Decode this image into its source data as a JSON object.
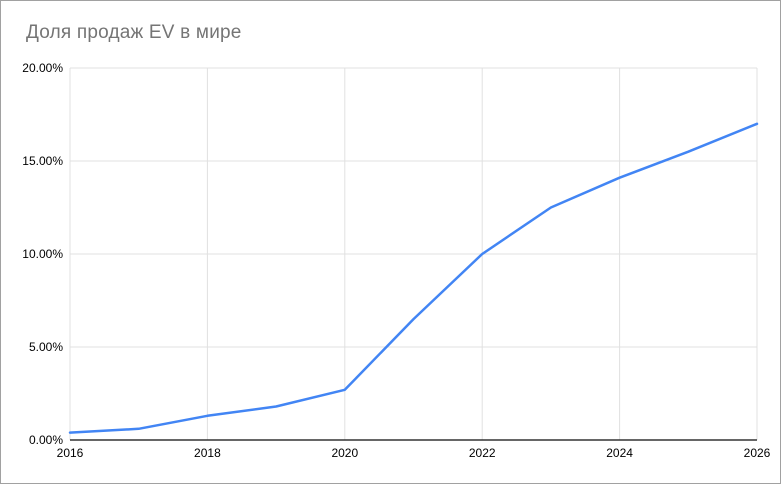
{
  "chart_data": {
    "type": "line",
    "title": "Доля продаж EV в мире",
    "x": [
      2016,
      2017,
      2018,
      2019,
      2020,
      2021,
      2022,
      2023,
      2024,
      2025,
      2026
    ],
    "values": [
      0.4,
      0.6,
      1.3,
      1.8,
      2.7,
      6.5,
      10.0,
      12.5,
      14.1,
      15.5,
      17.0
    ],
    "xlabel": "",
    "ylabel": "",
    "xlim": [
      2016,
      2026
    ],
    "ylim": [
      0,
      20
    ],
    "grid": true,
    "legend_position": "none",
    "x_ticks": [
      {
        "value": 2016,
        "label": "2016"
      },
      {
        "value": 2018,
        "label": "2018"
      },
      {
        "value": 2020,
        "label": "2020"
      },
      {
        "value": 2022,
        "label": "2022"
      },
      {
        "value": 2024,
        "label": "2024"
      },
      {
        "value": 2026,
        "label": "2026"
      }
    ],
    "y_ticks": [
      {
        "value": 0,
        "label": "0.00%"
      },
      {
        "value": 5,
        "label": "5.00%"
      },
      {
        "value": 10,
        "label": "10.00%"
      },
      {
        "value": 15,
        "label": "15.00%"
      },
      {
        "value": 20,
        "label": "20.00%"
      }
    ],
    "colors": {
      "series_line": "#4285f4",
      "gridline": "#e0e0e0",
      "axis_line": "#333333",
      "tick_text": "#000000",
      "title_text": "#757575",
      "background": "#ffffff",
      "card_border": "#a1a1a1"
    }
  }
}
